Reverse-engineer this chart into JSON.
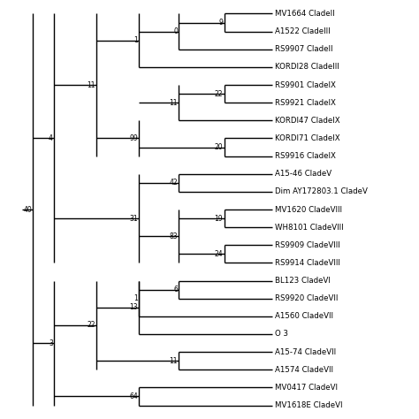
{
  "taxa": [
    "MV1664 CladeII",
    "A1522 CladeIII",
    "RS9907 CladeII",
    "KORDI28 CladeIII",
    "RS9901 CladeIX",
    "RS9921 CladeIX",
    "KORDI47 CladeIX",
    "KORDI71 CladeIX",
    "RS9916 CladeIX",
    "A15-46 CladeV",
    "Dim AY172803.1 CladeV",
    "MV1620 CladeVIII",
    "WH8101 CladeVIII",
    "RS9909 CladeVIII",
    "RS9914 CladeVIII",
    "BL123 CladeVI",
    "RS9920 CladeVII",
    "A1560 CladeVII",
    "O 3",
    "A15-74 CladeVII",
    "A1574 CladeVII",
    "MV0417 CladeVI",
    "MV1618E CladeVI"
  ],
  "figsize": [
    4.74,
    4.74
  ],
  "dpi": 100,
  "lw": 1.0,
  "fs": 6.2,
  "bfs": 5.5
}
